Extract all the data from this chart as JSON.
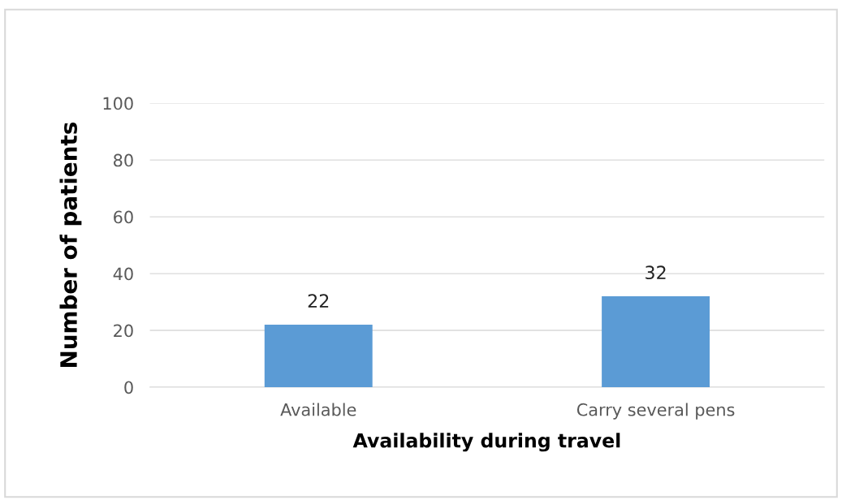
{
  "chart_data": {
    "type": "bar",
    "xlabel": "Availability during travel",
    "ylabel": "Number of patients",
    "categories": [
      "Available",
      "Carry several pens"
    ],
    "values": [
      22,
      32
    ],
    "color": "#5b9bd5",
    "ylim": [
      0,
      100
    ],
    "yticks": [
      0,
      20,
      40,
      60,
      80,
      100
    ],
    "grid": "y",
    "data_labels": true
  }
}
